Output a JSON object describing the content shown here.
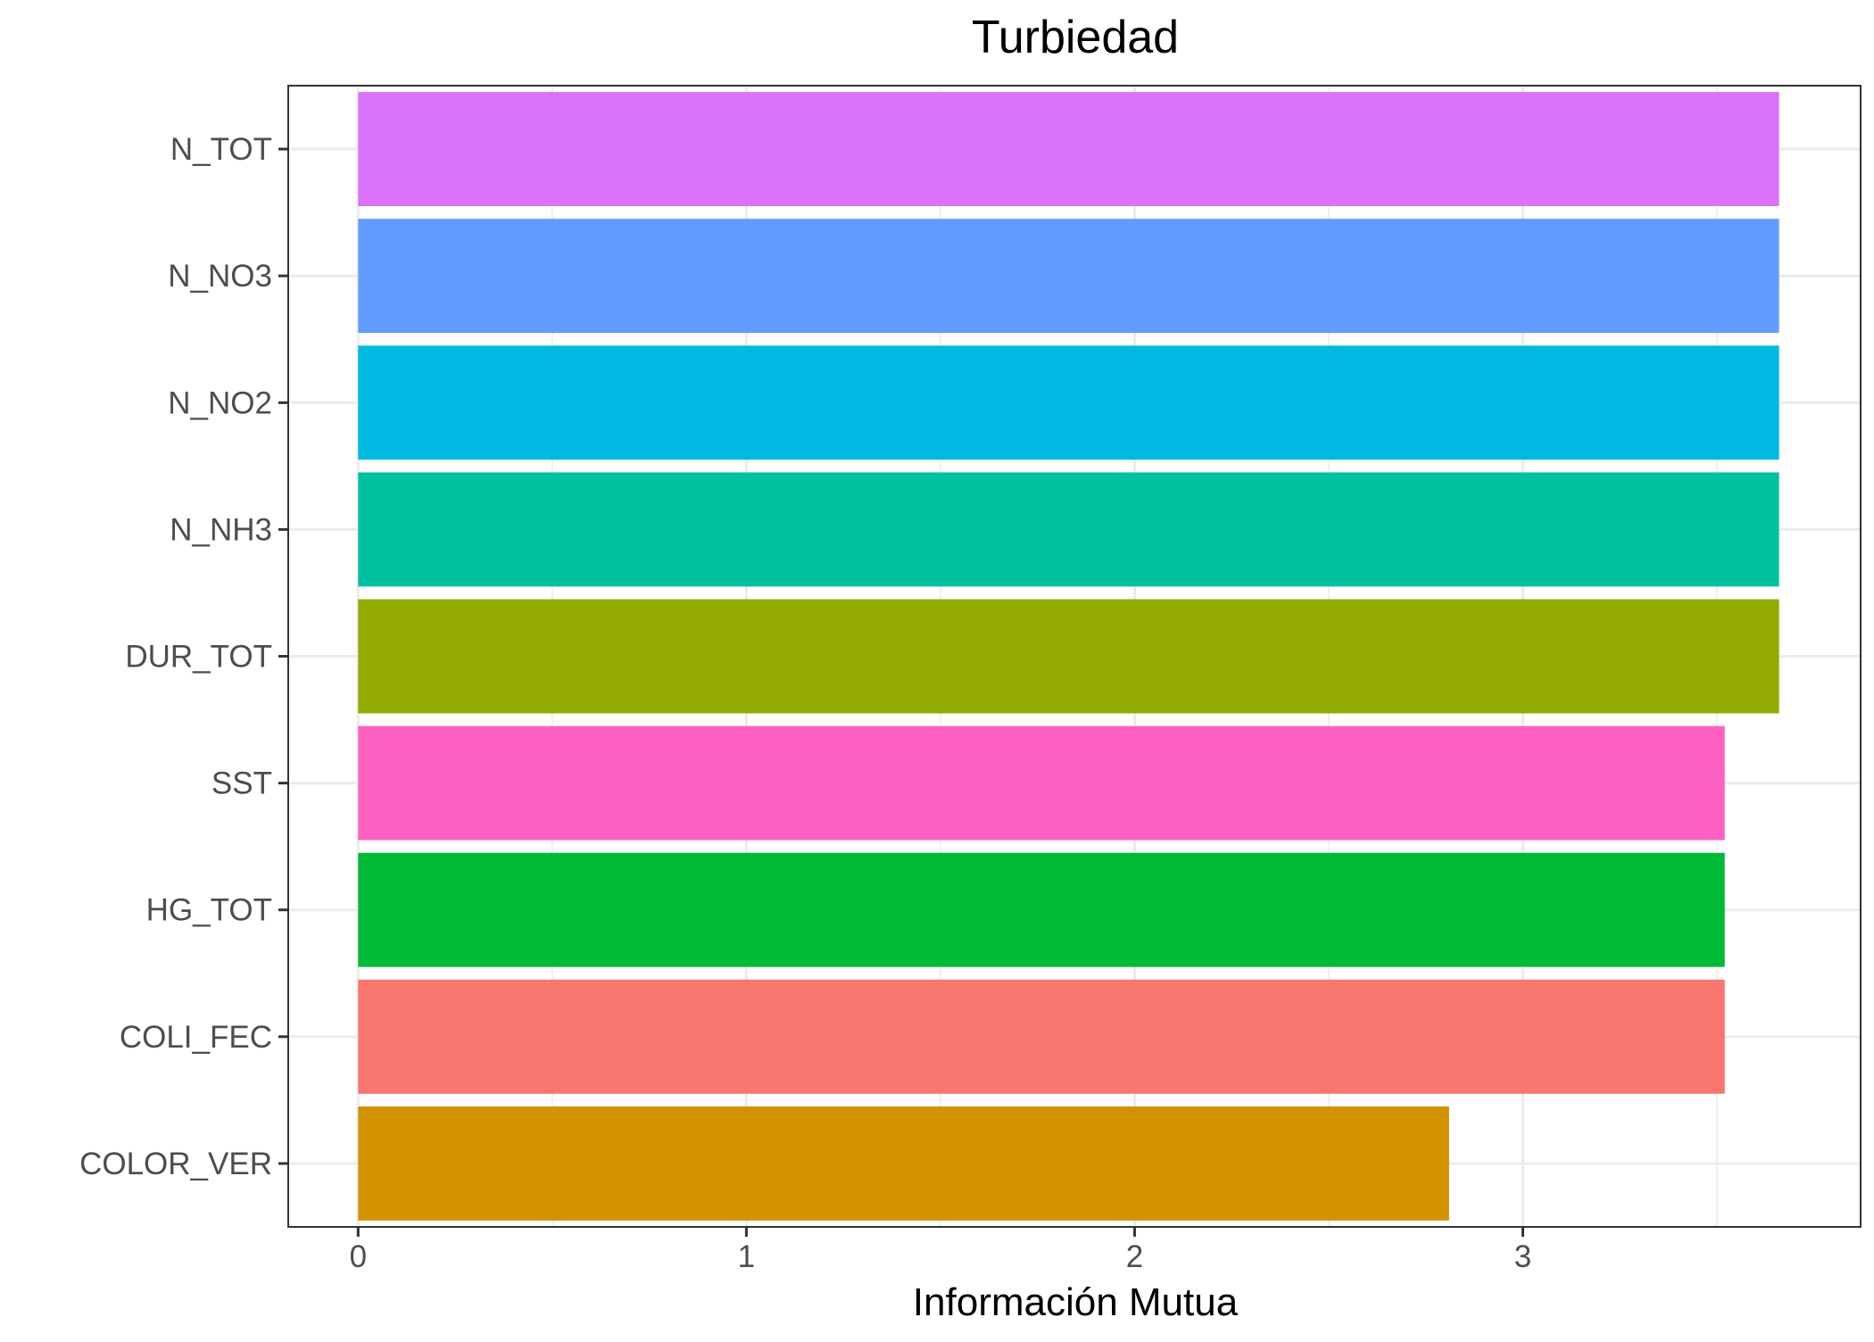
{
  "chart_data": {
    "type": "bar",
    "orientation": "horizontal",
    "title": "Turbiedad",
    "xlabel": "Información Mutua",
    "ylabel": "",
    "xlim": [
      -0.18,
      3.87
    ],
    "x_ticks": [
      0,
      1,
      2,
      3
    ],
    "x_tick_labels": [
      "0",
      "1",
      "2",
      "3"
    ],
    "categories": [
      "N_TOT",
      "N_NO3",
      "N_NO2",
      "N_NH3",
      "DUR_TOT",
      "SST",
      "HG_TOT",
      "COLI_FEC",
      "COLOR_VER"
    ],
    "values": [
      3.66,
      3.66,
      3.66,
      3.66,
      3.66,
      3.52,
      3.52,
      3.52,
      2.81
    ],
    "colors": [
      "#DB72FB",
      "#619CFF",
      "#00B9E3",
      "#00C19F",
      "#93AA00",
      "#FF61C3",
      "#00BA38",
      "#F8766D",
      "#D39200"
    ],
    "grid": true,
    "legend": "none"
  }
}
